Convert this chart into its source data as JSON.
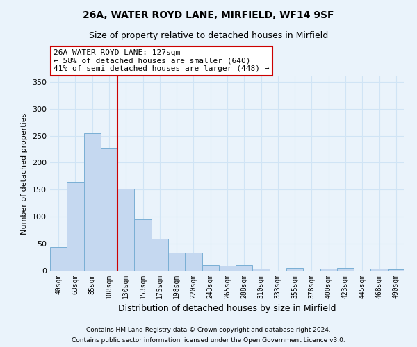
{
  "title1": "26A, WATER ROYD LANE, MIRFIELD, WF14 9SF",
  "title2": "Size of property relative to detached houses in Mirfield",
  "xlabel": "Distribution of detached houses by size in Mirfield",
  "ylabel": "Number of detached properties",
  "categories": [
    "40sqm",
    "63sqm",
    "85sqm",
    "108sqm",
    "130sqm",
    "153sqm",
    "175sqm",
    "198sqm",
    "220sqm",
    "243sqm",
    "265sqm",
    "288sqm",
    "310sqm",
    "333sqm",
    "355sqm",
    "378sqm",
    "400sqm",
    "423sqm",
    "445sqm",
    "468sqm",
    "490sqm"
  ],
  "values": [
    44,
    164,
    255,
    228,
    152,
    95,
    59,
    34,
    34,
    10,
    9,
    10,
    4,
    0,
    5,
    0,
    4,
    5,
    0,
    4,
    2
  ],
  "bar_color": "#c5d8f0",
  "bar_edge_color": "#7aafd4",
  "vline_color": "#cc0000",
  "annotation_text": "26A WATER ROYD LANE: 127sqm\n← 58% of detached houses are smaller (640)\n41% of semi-detached houses are larger (448) →",
  "annotation_box_color": "#ffffff",
  "annotation_box_edge": "#cc0000",
  "ylim": [
    0,
    360
  ],
  "yticks": [
    0,
    50,
    100,
    150,
    200,
    250,
    300,
    350
  ],
  "footer1": "Contains HM Land Registry data © Crown copyright and database right 2024.",
  "footer2": "Contains public sector information licensed under the Open Government Licence v3.0.",
  "background_color": "#eaf3fb",
  "grid_color": "#d0e4f5",
  "title1_fontsize": 10,
  "title2_fontsize": 9
}
